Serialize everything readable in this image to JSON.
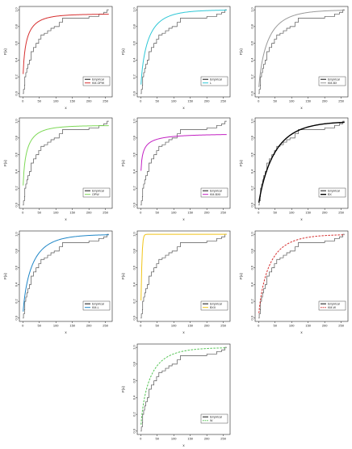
{
  "chart_data": [
    {
      "type": "line",
      "xlabel": "x",
      "ylabel": "F(x)",
      "xlim": [
        0,
        260
      ],
      "ylim": [
        0,
        1
      ],
      "xticks": [
        0,
        50,
        100,
        150,
        200,
        250
      ],
      "yticks": [
        0,
        0.2,
        0.4,
        0.6,
        0.8,
        1.0
      ],
      "series": [
        {
          "name": "Empirical",
          "color": "#555555",
          "kind": "step"
        },
        {
          "name": "KM-OPW",
          "color": "#d62f2f",
          "kind": "curve",
          "shape": 0.55,
          "scale": 0.1,
          "cap": 0.95
        }
      ]
    },
    {
      "type": "line",
      "xlabel": "x",
      "ylabel": "F(x)",
      "xlim": [
        0,
        260
      ],
      "ylim": [
        0,
        1
      ],
      "xticks": [
        0,
        50,
        100,
        150,
        200,
        250
      ],
      "yticks": [
        0,
        0.2,
        0.4,
        0.6,
        0.8,
        1.0
      ],
      "series": [
        {
          "name": "Empirical",
          "color": "#555555",
          "kind": "step"
        },
        {
          "name": "L",
          "color": "#2ec7d6",
          "kind": "curve",
          "shape": 0.7,
          "scale": 0.045,
          "cap": 1.0
        }
      ]
    },
    {
      "type": "line",
      "xlabel": "x",
      "ylabel": "F(x)",
      "xlim": [
        0,
        260
      ],
      "ylim": [
        0,
        1
      ],
      "xticks": [
        0,
        50,
        100,
        150,
        200,
        250
      ],
      "yticks": [
        0,
        0.2,
        0.4,
        0.6,
        0.8,
        1.0
      ],
      "series": [
        {
          "name": "Empirical",
          "color": "#555555",
          "kind": "step"
        },
        {
          "name": "KM-BX",
          "color": "#999999",
          "kind": "curve",
          "shape": 0.75,
          "scale": 0.035,
          "cap": 1.0
        }
      ]
    },
    {
      "type": "line",
      "xlabel": "x",
      "ylabel": "F(x)",
      "xlim": [
        0,
        260
      ],
      "ylim": [
        0,
        1
      ],
      "xticks": [
        0,
        50,
        100,
        150,
        200,
        250
      ],
      "yticks": [
        0,
        0.2,
        0.4,
        0.6,
        0.8,
        1.0
      ],
      "series": [
        {
          "name": "Empirical",
          "color": "#555555",
          "kind": "step"
        },
        {
          "name": "OPW",
          "color": "#7ed957",
          "kind": "curve",
          "shape": 0.55,
          "scale": 0.1,
          "cap": 0.95
        }
      ]
    },
    {
      "type": "line",
      "xlabel": "x",
      "ylabel": "F(x)",
      "xlim": [
        0,
        260
      ],
      "ylim": [
        0,
        1
      ],
      "xticks": [
        0,
        50,
        100,
        150,
        200,
        250
      ],
      "yticks": [
        0,
        0.2,
        0.4,
        0.6,
        0.8,
        1.0
      ],
      "series": [
        {
          "name": "Empirical",
          "color": "#555555",
          "kind": "step"
        },
        {
          "name": "KM-BXII",
          "color": "#c21fc2",
          "kind": "curve",
          "shape": 0.35,
          "scale": 0.3,
          "cap": 0.85
        }
      ]
    },
    {
      "type": "line",
      "xlabel": "x",
      "ylabel": "F(x)",
      "xlim": [
        0,
        260
      ],
      "ylim": [
        0,
        1
      ],
      "xticks": [
        0,
        50,
        100,
        150,
        200,
        250
      ],
      "yticks": [
        0,
        0.2,
        0.4,
        0.6,
        0.8,
        1.0
      ],
      "series": [
        {
          "name": "Empirical",
          "color": "#555555",
          "kind": "step"
        },
        {
          "name": "BX",
          "color": "#000000",
          "kind": "curve",
          "shape": 0.9,
          "scale": 0.02,
          "cap": 1.0,
          "thick": true
        }
      ]
    },
    {
      "type": "line",
      "xlabel": "x",
      "ylabel": "F(x)",
      "xlim": [
        0,
        260
      ],
      "ylim": [
        0,
        1
      ],
      "xticks": [
        0,
        50,
        100,
        150,
        200,
        250
      ],
      "yticks": [
        0,
        0.2,
        0.4,
        0.6,
        0.8,
        1.0
      ],
      "series": [
        {
          "name": "Empirical",
          "color": "#555555",
          "kind": "step"
        },
        {
          "name": "KM-L",
          "color": "#1f86c7",
          "kind": "curve",
          "shape": 0.75,
          "scale": 0.035,
          "cap": 1.0
        }
      ]
    },
    {
      "type": "line",
      "xlabel": "x",
      "ylabel": "F(x)",
      "xlim": [
        0,
        260
      ],
      "ylim": [
        0,
        1
      ],
      "xticks": [
        0,
        50,
        100,
        150,
        200,
        250
      ],
      "yticks": [
        0,
        0.2,
        0.4,
        0.6,
        0.8,
        1.0
      ],
      "series": [
        {
          "name": "Empirical",
          "color": "#555555",
          "kind": "step"
        },
        {
          "name": "BXII",
          "color": "#f0c419",
          "kind": "curve",
          "shape": 1.2,
          "scale": 0.3,
          "cap": 1.0
        }
      ]
    },
    {
      "type": "line",
      "xlabel": "x",
      "ylabel": "F(x)",
      "xlim": [
        0,
        260
      ],
      "ylim": [
        0,
        1
      ],
      "xticks": [
        0,
        50,
        100,
        150,
        200,
        250
      ],
      "yticks": [
        0,
        0.2,
        0.4,
        0.6,
        0.8,
        1.0
      ],
      "series": [
        {
          "name": "Empirical",
          "color": "#555555",
          "kind": "step"
        },
        {
          "name": "KM-W",
          "color": "#d62f2f",
          "kind": "curve",
          "shape": 0.8,
          "scale": 0.03,
          "cap": 1.0,
          "dashed": true
        }
      ]
    },
    {
      "type": "line",
      "xlabel": "x",
      "ylabel": "F(x)",
      "xlim": [
        0,
        260
      ],
      "ylim": [
        0,
        1
      ],
      "xticks": [
        0,
        50,
        100,
        150,
        200,
        250
      ],
      "yticks": [
        0,
        0.2,
        0.4,
        0.6,
        0.8,
        1.0
      ],
      "series": [
        {
          "name": "Empirical",
          "color": "#555555",
          "kind": "step"
        },
        {
          "name": "W",
          "color": "#55c455",
          "kind": "curve",
          "shape": 0.75,
          "scale": 0.035,
          "cap": 1.0,
          "dashed": true
        }
      ]
    }
  ],
  "empirical_steps": [
    [
      2,
      0.05
    ],
    [
      5,
      0.1
    ],
    [
      6,
      0.2
    ],
    [
      9,
      0.25
    ],
    [
      12,
      0.3
    ],
    [
      15,
      0.35
    ],
    [
      20,
      0.4
    ],
    [
      25,
      0.5
    ],
    [
      32,
      0.55
    ],
    [
      40,
      0.6
    ],
    [
      48,
      0.65
    ],
    [
      55,
      0.7
    ],
    [
      65,
      0.72
    ],
    [
      75,
      0.75
    ],
    [
      85,
      0.78
    ],
    [
      95,
      0.8
    ],
    [
      110,
      0.85
    ],
    [
      120,
      0.9
    ],
    [
      200,
      0.92
    ],
    [
      230,
      0.95
    ],
    [
      245,
      0.97
    ],
    [
      255,
      1.0
    ]
  ]
}
